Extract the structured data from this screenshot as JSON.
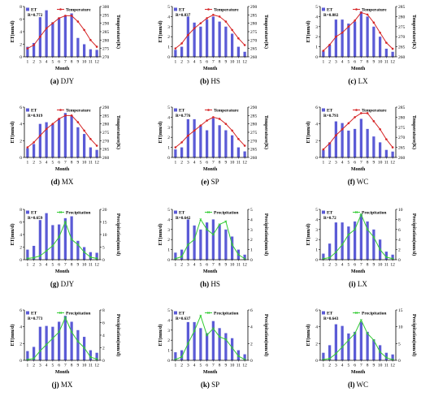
{
  "colors": {
    "bar": "#5b5bd6",
    "temperature": "#d62728",
    "precipitation": "#33cc33"
  },
  "chart_data": [
    {
      "type": "bar",
      "caption_letter": "(a)",
      "caption_site": "DJY",
      "categories": [
        "1",
        "2",
        "3",
        "4",
        "5",
        "6",
        "7",
        "8",
        "9",
        "10",
        "11",
        "12"
      ],
      "series": [
        {
          "name": "ET",
          "type": "bar",
          "axis": "left",
          "values": [
            1.6,
            2.2,
            6.3,
            7.4,
            5.5,
            6.2,
            6.6,
            6.9,
            3.0,
            2.0,
            1.2,
            1.1
          ]
        },
        {
          "name": "Temperature",
          "type": "line",
          "axis": "right",
          "values": [
            275,
            277,
            282,
            287,
            290,
            293,
            294.5,
            294.5,
            291,
            286,
            280,
            276
          ]
        }
      ],
      "annotation": "R=0.772",
      "xlabel": "Month",
      "ylabel": "ET(mm/d)",
      "y2label": "Temperature(K)",
      "ylim": [
        0,
        8
      ],
      "yticks": [
        0,
        2,
        4,
        6,
        8
      ],
      "y2lim": [
        270,
        300
      ],
      "y2ticks": [
        270,
        275,
        280,
        285,
        290,
        295,
        300
      ]
    },
    {
      "type": "bar",
      "caption_letter": "(b)",
      "caption_site": "HS",
      "categories": [
        "1",
        "2",
        "3",
        "4",
        "5",
        "6",
        "7",
        "8",
        "9",
        "10",
        "11",
        "12"
      ],
      "series": [
        {
          "name": "ET",
          "type": "bar",
          "axis": "left",
          "values": [
            0.7,
            1.0,
            4.0,
            3.4,
            3.0,
            3.7,
            4.0,
            3.5,
            3.0,
            2.3,
            1.0,
            0.5
          ]
        },
        {
          "name": "Temperature",
          "type": "line",
          "axis": "right",
          "values": [
            265,
            268,
            273,
            277,
            280,
            283,
            285,
            284,
            281,
            276,
            271,
            267
          ]
        }
      ],
      "annotation": "R=0.837",
      "xlabel": "Month",
      "ylabel": "ET(mm/d)",
      "y2label": "Temperature(K)",
      "ylim": [
        0,
        5
      ],
      "yticks": [
        0,
        1,
        2,
        3,
        4,
        5
      ],
      "y2lim": [
        260,
        290
      ],
      "y2ticks": [
        260,
        265,
        270,
        275,
        280,
        285,
        290
      ]
    },
    {
      "type": "bar",
      "caption_letter": "(c)",
      "caption_site": "LX",
      "categories": [
        "1",
        "2",
        "3",
        "4",
        "5",
        "6",
        "7",
        "8",
        "9",
        "10",
        "11",
        "12"
      ],
      "series": [
        {
          "name": "ET",
          "type": "bar",
          "axis": "left",
          "values": [
            0.6,
            1.2,
            3.7,
            3.7,
            3.3,
            3.5,
            4.5,
            4.0,
            3.0,
            2.0,
            0.8,
            0.5
          ]
        },
        {
          "name": "Temperature",
          "type": "line",
          "axis": "right",
          "values": [
            263,
            266,
            270,
            272,
            275,
            278,
            282,
            281,
            277,
            272,
            267,
            264
          ]
        }
      ],
      "annotation": "R=0.882",
      "xlabel": "Month",
      "ylabel": "ET(mm/d)",
      "y2label": "Temperature(K)",
      "ylim": [
        0,
        5
      ],
      "yticks": [
        0,
        1,
        2,
        3,
        4,
        5
      ],
      "y2lim": [
        260,
        285
      ],
      "y2ticks": [
        260,
        265,
        270,
        275,
        280,
        285
      ]
    },
    {
      "type": "bar",
      "caption_letter": "(d)",
      "caption_site": "MX",
      "categories": [
        "1",
        "2",
        "3",
        "4",
        "5",
        "6",
        "7",
        "8",
        "9",
        "10",
        "11",
        "12"
      ],
      "series": [
        {
          "name": "ET",
          "type": "bar",
          "axis": "left",
          "values": [
            1.1,
            1.6,
            4.0,
            4.2,
            4.0,
            4.6,
            5.3,
            5.0,
            3.6,
            2.8,
            1.2,
            0.9
          ]
        },
        {
          "name": "Temperature",
          "type": "line",
          "axis": "right",
          "values": [
            266,
            269,
            273,
            277,
            280,
            283,
            285,
            285,
            281,
            276,
            271,
            267
          ]
        }
      ],
      "annotation": "R=0.919",
      "xlabel": "Month",
      "ylabel": "ET(mm/d)",
      "y2label": "Temperature(K)",
      "ylim": [
        0,
        6
      ],
      "yticks": [
        0,
        2,
        4,
        6
      ],
      "y2lim": [
        260,
        290
      ],
      "y2ticks": [
        260,
        265,
        270,
        275,
        280,
        285,
        290
      ]
    },
    {
      "type": "bar",
      "caption_letter": "(e)",
      "caption_site": "SP",
      "categories": [
        "1",
        "2",
        "3",
        "4",
        "5",
        "6",
        "7",
        "8",
        "9",
        "10",
        "11",
        "12"
      ],
      "series": [
        {
          "name": "ET",
          "type": "bar",
          "axis": "left",
          "values": [
            0.8,
            1.0,
            3.8,
            3.8,
            3.2,
            2.7,
            3.9,
            3.2,
            2.7,
            2.2,
            1.0,
            0.6
          ]
        },
        {
          "name": "Temperature",
          "type": "line",
          "axis": "right",
          "values": [
            266,
            269,
            273,
            276,
            279,
            282,
            284,
            283,
            280,
            276,
            271,
            267
          ]
        }
      ],
      "annotation": "R=0.776",
      "xlabel": "Month",
      "ylabel": "ET(mm/d)",
      "y2label": "Temperature(K)",
      "ylim": [
        0,
        5
      ],
      "yticks": [
        0,
        1,
        2,
        3,
        4,
        5
      ],
      "y2lim": [
        260,
        290
      ],
      "y2ticks": [
        260,
        265,
        270,
        275,
        280,
        285,
        290
      ]
    },
    {
      "type": "bar",
      "caption_letter": "(f)",
      "caption_site": "WC",
      "categories": [
        "1",
        "2",
        "3",
        "4",
        "5",
        "6",
        "7",
        "8",
        "9",
        "10",
        "11",
        "12"
      ],
      "series": [
        {
          "name": "ET",
          "type": "bar",
          "axis": "left",
          "values": [
            0.9,
            1.8,
            4.3,
            4.1,
            3.2,
            3.4,
            4.6,
            3.4,
            2.5,
            1.8,
            0.9,
            0.7
          ]
        },
        {
          "name": "Temperature",
          "type": "line",
          "axis": "right",
          "values": [
            264,
            267,
            271,
            274,
            277,
            280,
            282,
            282,
            278,
            274,
            269,
            265
          ]
        }
      ],
      "annotation": "R=0.793",
      "xlabel": "Month",
      "ylabel": "ET(mm/d)",
      "y2label": "Temperature(K)",
      "ylim": [
        0,
        6
      ],
      "yticks": [
        0,
        2,
        4,
        6
      ],
      "y2lim": [
        260,
        285
      ],
      "y2ticks": [
        260,
        265,
        270,
        275,
        280,
        285
      ]
    },
    {
      "type": "bar",
      "caption_letter": "(g)",
      "caption_site": "DJY",
      "categories": [
        "1",
        "2",
        "3",
        "4",
        "5",
        "6",
        "7",
        "8",
        "9",
        "10",
        "11",
        "12"
      ],
      "series": [
        {
          "name": "ET",
          "type": "bar",
          "axis": "left",
          "values": [
            1.6,
            2.2,
            6.3,
            7.4,
            5.5,
            5.6,
            6.6,
            6.9,
            3.0,
            2.0,
            1.2,
            1.1
          ]
        },
        {
          "name": "Precipitation",
          "type": "line",
          "axis": "right",
          "values": [
            0.5,
            0.8,
            1.5,
            3.5,
            5.5,
            9.0,
            15.0,
            8.0,
            6.0,
            3.0,
            1.0,
            0.5
          ]
        }
      ],
      "annotation": "R=0.659",
      "xlabel": "Month",
      "ylabel": "ET(mm/d)",
      "y2label": "Precipitation(mm/d)",
      "ylim": [
        0,
        8
      ],
      "yticks": [
        0,
        2,
        4,
        6,
        8
      ],
      "y2lim": [
        0,
        20
      ],
      "y2ticks": [
        0,
        5,
        10,
        15,
        20
      ]
    },
    {
      "type": "bar",
      "caption_letter": "(h)",
      "caption_site": "HS",
      "categories": [
        "1",
        "2",
        "3",
        "4",
        "5",
        "6",
        "7",
        "8",
        "9",
        "10",
        "11",
        "12"
      ],
      "series": [
        {
          "name": "ET",
          "type": "bar",
          "axis": "left",
          "values": [
            0.7,
            1.0,
            4.0,
            3.4,
            3.0,
            3.7,
            4.0,
            3.5,
            3.0,
            2.3,
            1.0,
            0.5
          ]
        },
        {
          "name": "Precipitation",
          "type": "line",
          "axis": "right",
          "values": [
            0.1,
            0.3,
            1.5,
            2.0,
            4.0,
            3.0,
            2.5,
            3.5,
            3.8,
            1.5,
            0.5,
            0.1
          ]
        }
      ],
      "annotation": "R=0.642",
      "xlabel": "Month",
      "ylabel": "ET(mm/d)",
      "y2label": "Precipitation(mm/d)",
      "ylim": [
        0,
        5
      ],
      "yticks": [
        0,
        1,
        2,
        3,
        4,
        5
      ],
      "y2lim": [
        0,
        5
      ],
      "y2ticks": [
        0,
        1,
        2,
        3,
        4,
        5
      ]
    },
    {
      "type": "bar",
      "caption_letter": "(i)",
      "caption_site": "LX",
      "categories": [
        "1",
        "2",
        "3",
        "4",
        "5",
        "6",
        "7",
        "8",
        "9",
        "10",
        "11",
        "12"
      ],
      "series": [
        {
          "name": "ET",
          "type": "bar",
          "axis": "left",
          "values": [
            0.6,
            1.6,
            3.7,
            3.7,
            3.3,
            3.8,
            4.5,
            3.8,
            3.0,
            2.0,
            0.8,
            0.5
          ]
        },
        {
          "name": "Precipitation",
          "type": "line",
          "axis": "right",
          "values": [
            0.2,
            0.4,
            1.5,
            3.0,
            5.0,
            6.0,
            9.0,
            6.0,
            4.5,
            2.0,
            0.5,
            0.2
          ]
        }
      ],
      "annotation": "R=0.72",
      "xlabel": "Month",
      "ylabel": "ET(mm/d)",
      "y2label": "Precipitation(mm/d)",
      "ylim": [
        0,
        5
      ],
      "yticks": [
        0,
        1,
        2,
        3,
        4,
        5
      ],
      "y2lim": [
        0,
        10
      ],
      "y2ticks": [
        0,
        2,
        4,
        6,
        8,
        10
      ]
    },
    {
      "type": "bar",
      "caption_letter": "(j)",
      "caption_site": "MX",
      "categories": [
        "1",
        "2",
        "3",
        "4",
        "5",
        "6",
        "7",
        "8",
        "9",
        "10",
        "11",
        "12"
      ],
      "series": [
        {
          "name": "ET",
          "type": "bar",
          "axis": "left",
          "values": [
            1.1,
            1.6,
            4.0,
            4.1,
            4.0,
            4.6,
            5.3,
            4.6,
            3.6,
            2.8,
            1.2,
            0.9
          ]
        },
        {
          "name": "Precipitation",
          "type": "line",
          "axis": "right",
          "values": [
            0.1,
            0.3,
            1.5,
            2.5,
            3.5,
            4.5,
            6.8,
            4.5,
            3.0,
            2.0,
            0.5,
            0.2
          ]
        }
      ],
      "annotation": "R=0.773",
      "xlabel": "Month",
      "ylabel": "ET(mm/d)",
      "y2label": "Precipitation(mm/d)",
      "ylim": [
        0,
        6
      ],
      "yticks": [
        0,
        2,
        4,
        6
      ],
      "y2lim": [
        0,
        8
      ],
      "y2ticks": [
        0,
        2,
        4,
        6,
        8
      ]
    },
    {
      "type": "bar",
      "caption_letter": "(k)",
      "caption_site": "SP",
      "categories": [
        "1",
        "2",
        "3",
        "4",
        "5",
        "6",
        "7",
        "8",
        "9",
        "10",
        "11",
        "12"
      ],
      "series": [
        {
          "name": "ET",
          "type": "bar",
          "axis": "left",
          "values": [
            0.8,
            1.0,
            3.8,
            3.8,
            3.2,
            2.7,
            3.9,
            3.2,
            2.7,
            2.2,
            1.0,
            0.6
          ]
        },
        {
          "name": "Precipitation",
          "type": "line",
          "axis": "right",
          "values": [
            0.1,
            0.4,
            2.0,
            3.5,
            5.3,
            3.0,
            3.8,
            2.8,
            2.5,
            1.5,
            0.5,
            0.1
          ]
        }
      ],
      "annotation": "R=0.637",
      "xlabel": "Month",
      "ylabel": "ET(mm/d)",
      "y2label": "Precipitation(mm/d)",
      "ylim": [
        0,
        5
      ],
      "yticks": [
        0,
        1,
        2,
        3,
        4,
        5
      ],
      "y2lim": [
        0,
        6
      ],
      "y2ticks": [
        0,
        2,
        4,
        6
      ]
    },
    {
      "type": "bar",
      "caption_letter": "(l)",
      "caption_site": "WC",
      "categories": [
        "1",
        "2",
        "3",
        "4",
        "5",
        "6",
        "7",
        "8",
        "9",
        "10",
        "11",
        "12"
      ],
      "series": [
        {
          "name": "ET",
          "type": "bar",
          "axis": "left",
          "values": [
            0.9,
            1.8,
            4.3,
            4.1,
            3.2,
            3.4,
            4.6,
            3.4,
            2.5,
            1.8,
            0.9,
            0.7
          ]
        },
        {
          "name": "Precipitation",
          "type": "line",
          "axis": "right",
          "values": [
            0.2,
            0.5,
            2.0,
            4.0,
            6.0,
            8.0,
            12.0,
            8.0,
            6.0,
            2.5,
            0.8,
            0.2
          ]
        }
      ],
      "annotation": "R=0.643",
      "xlabel": "Month",
      "ylabel": "ET(mm/d)",
      "y2label": "Precipitation(mm/d)",
      "ylim": [
        0,
        6
      ],
      "yticks": [
        0,
        2,
        4,
        6
      ],
      "y2lim": [
        0,
        15
      ],
      "y2ticks": [
        0,
        5,
        10,
        15
      ]
    }
  ]
}
